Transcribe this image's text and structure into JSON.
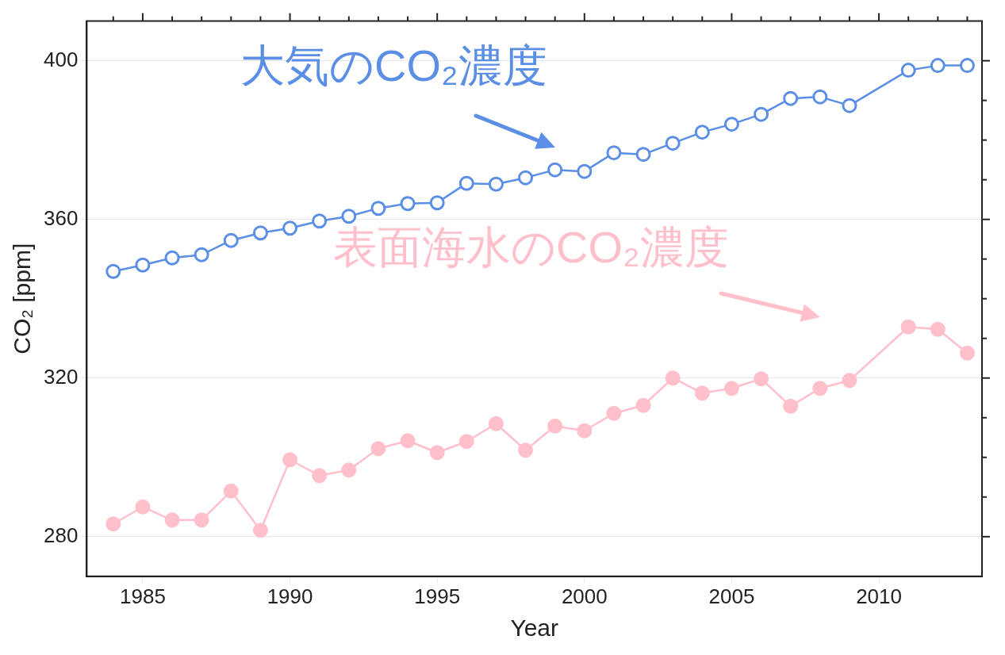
{
  "chart_data": {
    "type": "line",
    "xlabel": "Year",
    "ylabel": "CO₂ [ppm]",
    "x": [
      1984,
      1985,
      1986,
      1987,
      1988,
      1989,
      1990,
      1991,
      1992,
      1993,
      1994,
      1995,
      1996,
      1997,
      1998,
      1999,
      2000,
      2001,
      2002,
      2003,
      2004,
      2005,
      2006,
      2007,
      2008,
      2009,
      2010,
      2011,
      2012,
      2013
    ],
    "series": [
      {
        "name": "大気のCO₂濃度",
        "color": "#5b8fe6",
        "values": [
          346.9,
          348.5,
          350.3,
          351.1,
          354.7,
          356.6,
          357.8,
          359.6,
          360.8,
          362.8,
          364.0,
          364.2,
          369.1,
          368.9,
          370.5,
          372.5,
          372.1,
          376.8,
          376.4,
          379.2,
          382.0,
          384.0,
          386.5,
          390.5,
          390.9,
          388.7,
          null,
          397.6,
          398.8,
          398.8
        ]
      },
      {
        "name": "表面海水のCO₂濃度",
        "color": "#ffc0cb",
        "values": [
          283.2,
          287.5,
          284.2,
          284.2,
          291.5,
          281.6,
          299.4,
          295.4,
          296.8,
          302.2,
          304.2,
          301.2,
          304.0,
          308.5,
          301.8,
          307.9,
          306.7,
          311.1,
          313.1,
          320.0,
          316.2,
          317.4,
          319.8,
          312.9,
          317.4,
          319.4,
          null,
          332.9,
          332.3,
          326.3
        ]
      }
    ],
    "xlim": [
      1983.1,
      2013.5
    ],
    "xticks": [
      {
        "value": 1984,
        "label": null
      },
      1985,
      {
        "value": 1986,
        "label": null
      },
      {
        "value": 1987,
        "label": null
      },
      {
        "value": 1988,
        "label": null
      },
      {
        "value": 1989,
        "label": null
      },
      1990,
      {
        "value": 1991,
        "label": null
      },
      {
        "value": 1992,
        "label": null
      },
      {
        "value": 1993,
        "label": null
      },
      {
        "value": 1994,
        "label": null
      },
      1995,
      {
        "value": 1996,
        "label": null
      },
      {
        "value": 1997,
        "label": null
      },
      {
        "value": 1998,
        "label": null
      },
      {
        "value": 1999,
        "label": null
      },
      2000,
      {
        "value": 2001,
        "label": null
      },
      {
        "value": 2002,
        "label": null
      },
      {
        "value": 2003,
        "label": null
      },
      {
        "value": 2004,
        "label": null
      },
      2005,
      {
        "value": 2006,
        "label": null
      },
      {
        "value": 2007,
        "label": null
      },
      {
        "value": 2008,
        "label": null
      },
      {
        "value": 2009,
        "label": null
      },
      2010,
      {
        "value": 2011,
        "label": null
      },
      {
        "value": 2012,
        "label": null
      },
      {
        "value": 2013,
        "label": null
      }
    ],
    "ylim": [
      270,
      410
    ],
    "yticks": [
      280,
      {
        "value": 290,
        "label": null
      },
      {
        "value": 300,
        "label": null
      },
      {
        "value": 310,
        "label": null
      },
      320,
      {
        "value": 330,
        "label": null
      },
      {
        "value": 340,
        "label": null
      },
      {
        "value": 350,
        "label": null
      },
      360,
      {
        "value": 370,
        "label": null
      },
      {
        "value": 380,
        "label": null
      },
      {
        "value": 390,
        "label": null
      },
      400
    ],
    "grid": "y",
    "marker": "circle",
    "line_style": "solid",
    "legend": false
  }
}
